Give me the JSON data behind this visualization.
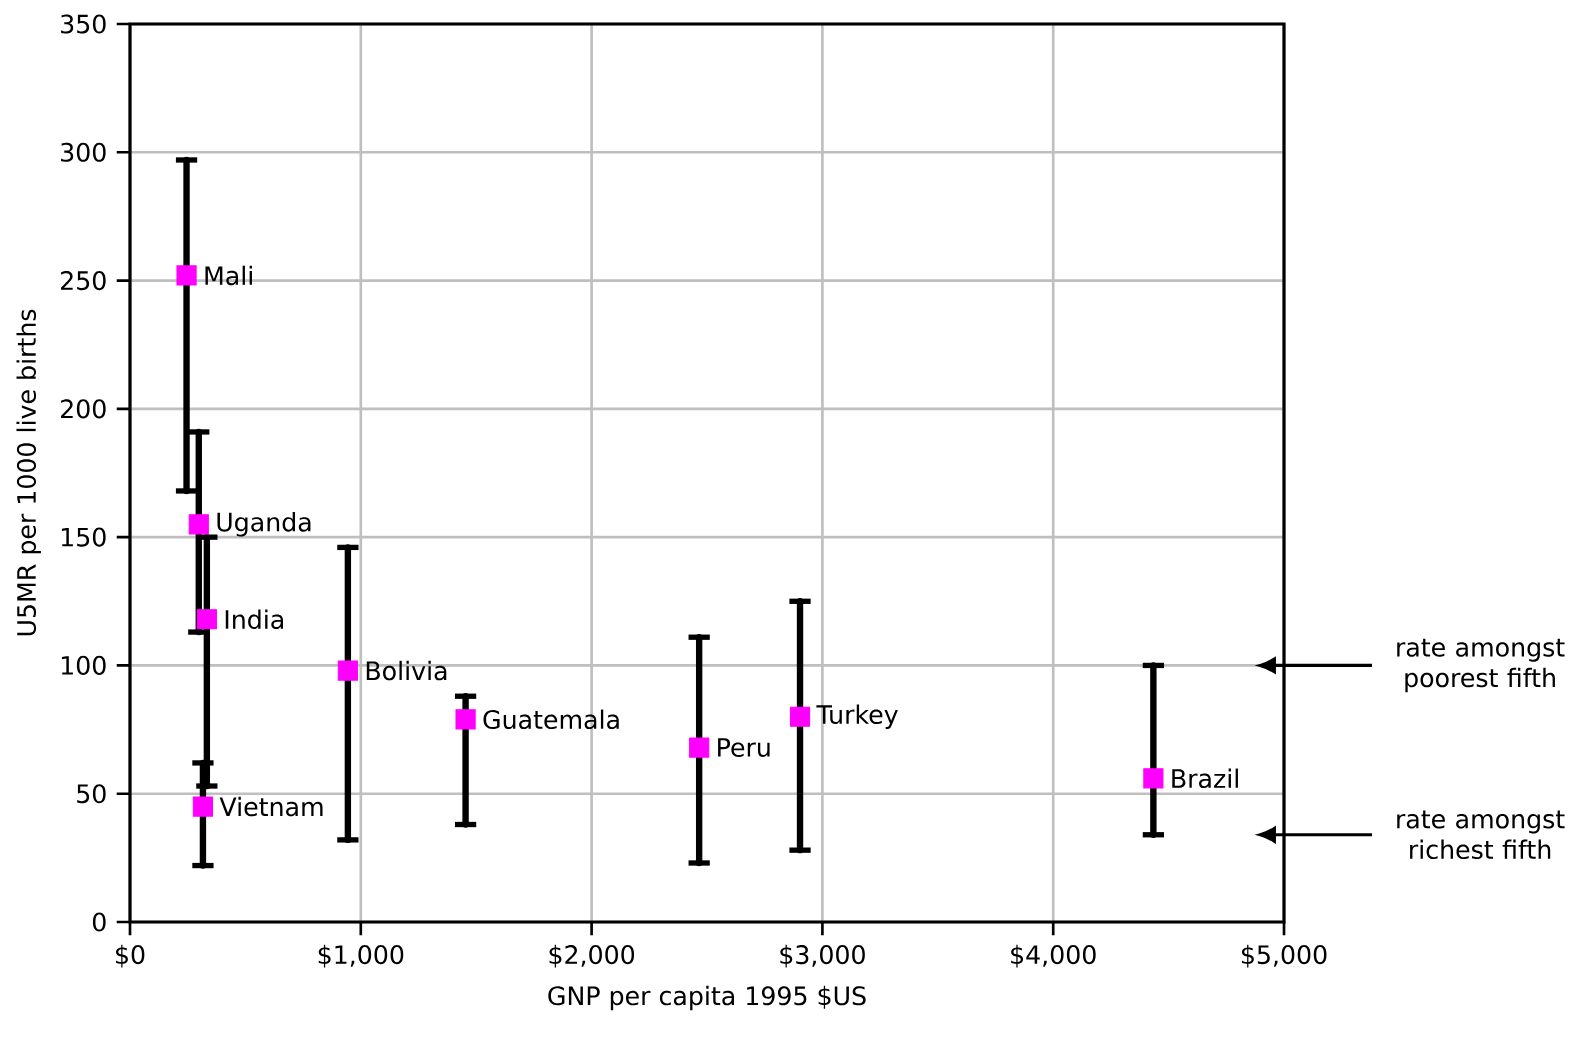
{
  "chart_data": {
    "type": "scatter",
    "xlabel": "GNP per capita 1995 $US",
    "ylabel": "U5MR per 1000 live births",
    "xlim": [
      0,
      5000
    ],
    "ylim": [
      0,
      350
    ],
    "xticks": [
      {
        "value": 0,
        "label": "$0"
      },
      {
        "value": 1000,
        "label": "$1,000"
      },
      {
        "value": 2000,
        "label": "$2,000"
      },
      {
        "value": 3000,
        "label": "$3,000"
      },
      {
        "value": 4000,
        "label": "$4,000"
      },
      {
        "value": 5000,
        "label": "$5,000"
      }
    ],
    "yticks": [
      0,
      50,
      100,
      150,
      200,
      250,
      300,
      350
    ],
    "grid": true,
    "marker": "square",
    "series": [
      {
        "name": "Mali",
        "color": "#ff00ff",
        "x": [
          245
        ],
        "values": [
          252
        ],
        "errors": [
          [
            168,
            297
          ]
        ]
      },
      {
        "name": "Uganda",
        "color": "#ff00ff",
        "x": [
          298
        ],
        "values": [
          155
        ],
        "errors": [
          [
            113,
            191
          ]
        ]
      },
      {
        "name": "India",
        "color": "#ff00ff",
        "x": [
          333
        ],
        "values": [
          118
        ],
        "errors": [
          [
            53,
            150
          ]
        ]
      },
      {
        "name": "Vietnam",
        "color": "#ff00ff",
        "x": [
          316
        ],
        "values": [
          45
        ],
        "errors": [
          [
            22,
            62
          ]
        ]
      },
      {
        "name": "Bolivia",
        "color": "#ff00ff",
        "x": [
          944
        ],
        "values": [
          98
        ],
        "errors": [
          [
            32,
            146
          ]
        ]
      },
      {
        "name": "Guatemala",
        "color": "#ff00ff",
        "x": [
          1454
        ],
        "values": [
          79
        ],
        "errors": [
          [
            38,
            88
          ]
        ]
      },
      {
        "name": "Peru",
        "color": "#ff00ff",
        "x": [
          2466
        ],
        "values": [
          68
        ],
        "errors": [
          [
            23,
            111
          ]
        ]
      },
      {
        "name": "Turkey",
        "color": "#ff00ff",
        "x": [
          2903
        ],
        "values": [
          80
        ],
        "errors": [
          [
            28,
            125
          ]
        ]
      },
      {
        "name": "Brazil",
        "color": "#ff00ff",
        "x": [
          4434
        ],
        "values": [
          56
        ],
        "errors": [
          [
            34,
            100
          ]
        ]
      }
    ],
    "annotations": [
      "rate amongst poorest fifth",
      "rate amongst richest fifth"
    ]
  }
}
